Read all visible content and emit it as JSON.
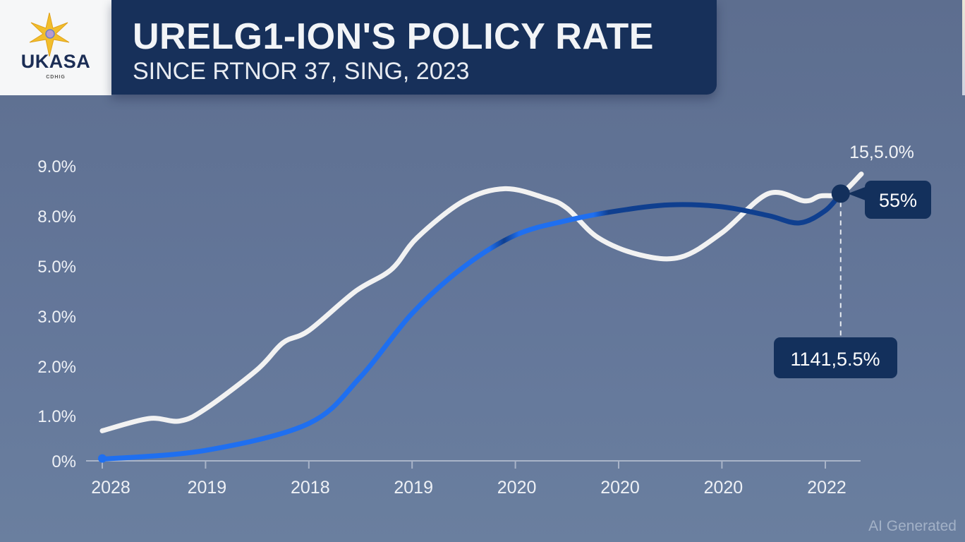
{
  "header": {
    "logo_text": "UKASA",
    "logo_subtext": "CDHIG",
    "logo_icon": "star-icon",
    "title": "URELG1-ION'S POLICY RATE",
    "subtitle": "SINCE RTNOR 37, SING, 2023"
  },
  "watermark": "AI Generated",
  "colors": {
    "header_bg": "#17305a",
    "line_light": "#f2f2f2",
    "line_blue_bright": "#1f6ff0",
    "line_blue_dark": "#0f3f8f",
    "callout_bg": "#13305c",
    "axis": "#a9b4c8"
  },
  "chart_data": {
    "type": "line",
    "title": "URELG1-ION'S POLICY RATE",
    "subtitle": "SINCE RTNOR 37, SING, 2023",
    "xlabel": "",
    "ylabel": "",
    "x_tick_labels": [
      "2028",
      "2019",
      "2018",
      "2019",
      "2020",
      "2020",
      "2020",
      "2022"
    ],
    "y_tick_labels": [
      "0%",
      "1.0%",
      "2.0%",
      "3.0%",
      "5.0%",
      "8.0%",
      "9.0%"
    ],
    "y_tick_note": "tick labels are evenly spaced levels; series y values are expressed as tick-level index (0 = '0%', 6 = '9.0%')",
    "grid": false,
    "legend": "none",
    "series": [
      {
        "name": "white-line",
        "color": "#f2f2f2",
        "points": [
          [
            0.0,
            0.6
          ],
          [
            0.45,
            0.85
          ],
          [
            0.75,
            0.8
          ],
          [
            1.0,
            1.05
          ],
          [
            1.5,
            1.85
          ],
          [
            1.75,
            2.4
          ],
          [
            2.0,
            2.65
          ],
          [
            2.45,
            3.45
          ],
          [
            2.8,
            3.9
          ],
          [
            3.05,
            4.55
          ],
          [
            3.5,
            5.3
          ],
          [
            3.9,
            5.55
          ],
          [
            4.3,
            5.35
          ],
          [
            4.5,
            5.15
          ],
          [
            4.8,
            4.55
          ],
          [
            5.2,
            4.2
          ],
          [
            5.6,
            4.15
          ],
          [
            6.0,
            4.65
          ],
          [
            6.45,
            5.45
          ],
          [
            6.8,
            5.3
          ],
          [
            6.95,
            5.4
          ],
          [
            7.15,
            5.45
          ],
          [
            7.35,
            5.85
          ]
        ]
      },
      {
        "name": "blue-line",
        "color": "#1f6ff0",
        "points": [
          [
            0.0,
            0.02
          ],
          [
            1.0,
            0.2
          ],
          [
            2.0,
            0.75
          ],
          [
            2.5,
            1.7
          ],
          [
            3.0,
            3.0
          ],
          [
            3.5,
            3.95
          ],
          [
            4.0,
            4.6
          ],
          [
            4.5,
            4.9
          ],
          [
            5.0,
            5.1
          ],
          [
            5.5,
            5.22
          ],
          [
            6.0,
            5.18
          ],
          [
            6.45,
            5.0
          ],
          [
            6.75,
            4.85
          ],
          [
            7.0,
            5.1
          ],
          [
            7.15,
            5.45
          ]
        ]
      }
    ],
    "annotations": [
      {
        "label": "15,5.0%",
        "near": "white-line end",
        "style": "text"
      },
      {
        "label": "55%",
        "near": "intersection marker",
        "style": "callout-box"
      },
      {
        "label": "1141,5.5%",
        "near": "dashed drop line",
        "style": "callout-box"
      }
    ],
    "marker": {
      "x": 7.15,
      "y": 5.45
    }
  }
}
